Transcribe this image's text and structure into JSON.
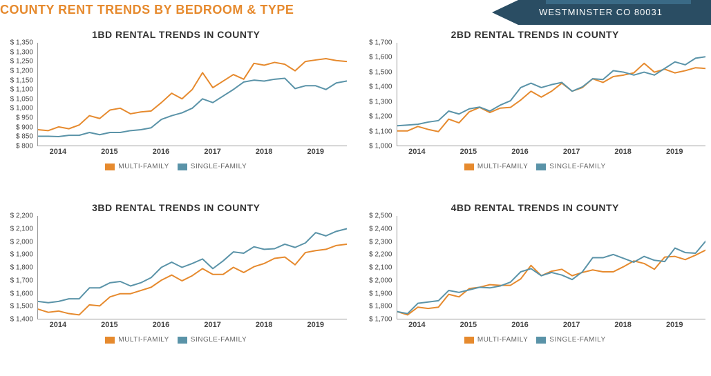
{
  "header": {
    "title": "COUNTY RENT TRENDS BY BEDROOM & TYPE",
    "location": "WESTMINSTER CO 80031"
  },
  "colors": {
    "title": "#e68a2e",
    "chip_bg": "#2a4d63",
    "axis": "#999999",
    "tick_text": "#444444",
    "series_multi": "#e68a2e",
    "series_single": "#5a93a8"
  },
  "x_axis": {
    "range": [
      2013.6,
      2019.6
    ],
    "ticks": [
      2014,
      2015,
      2016,
      2017,
      2018,
      2019
    ]
  },
  "legend": {
    "multi": "MULTI-FAMILY",
    "single": "SINGLE-FAMILY"
  },
  "style": {
    "line_width": 2,
    "chart_title_fontsize": 14,
    "y_tick_fontsize": 10,
    "x_tick_fontsize": 11,
    "legend_fontsize": 10
  },
  "charts": [
    {
      "id": "1bd",
      "title": "1BD RENTAL TRENDS IN COUNTY",
      "ylim": [
        800,
        1350
      ],
      "ystep": 50,
      "y_prefix": "$ ",
      "series": {
        "multi": [
          885,
          880,
          900,
          890,
          910,
          960,
          945,
          990,
          1000,
          970,
          980,
          985,
          1030,
          1080,
          1050,
          1100,
          1190,
          1110,
          1145,
          1180,
          1155,
          1240,
          1230,
          1245,
          1235,
          1200,
          1250,
          1258,
          1265,
          1255,
          1250
        ],
        "single": [
          850,
          850,
          848,
          855,
          855,
          870,
          858,
          870,
          870,
          880,
          885,
          895,
          940,
          960,
          975,
          1000,
          1050,
          1030,
          1065,
          1100,
          1140,
          1150,
          1145,
          1155,
          1160,
          1105,
          1120,
          1120,
          1100,
          1135,
          1145
        ]
      }
    },
    {
      "id": "2bd",
      "title": "2BD RENTAL TRENDS IN COUNTY",
      "ylim": [
        1000,
        1700
      ],
      "ystep": 100,
      "y_prefix": "$ ",
      "series": {
        "multi": [
          1100,
          1100,
          1130,
          1110,
          1095,
          1180,
          1155,
          1230,
          1260,
          1225,
          1255,
          1260,
          1310,
          1370,
          1330,
          1370,
          1425,
          1370,
          1395,
          1455,
          1430,
          1470,
          1480,
          1495,
          1560,
          1500,
          1520,
          1495,
          1510,
          1530,
          1525
        ],
        "single": [
          1135,
          1140,
          1145,
          1160,
          1170,
          1235,
          1215,
          1250,
          1262,
          1235,
          1275,
          1305,
          1395,
          1425,
          1395,
          1415,
          1430,
          1370,
          1400,
          1455,
          1450,
          1510,
          1500,
          1480,
          1500,
          1480,
          1525,
          1570,
          1550,
          1595,
          1605
        ]
      }
    },
    {
      "id": "3bd",
      "title": "3BD RENTAL TRENDS IN COUNTY",
      "ylim": [
        1400,
        2200
      ],
      "ystep": 100,
      "y_prefix": "$ ",
      "series": {
        "multi": [
          1475,
          1450,
          1460,
          1440,
          1430,
          1508,
          1500,
          1570,
          1595,
          1595,
          1620,
          1645,
          1700,
          1740,
          1695,
          1735,
          1790,
          1745,
          1745,
          1800,
          1760,
          1805,
          1830,
          1870,
          1880,
          1820,
          1915,
          1930,
          1940,
          1970,
          1980
        ],
        "single": [
          1535,
          1525,
          1535,
          1555,
          1555,
          1640,
          1640,
          1680,
          1690,
          1655,
          1680,
          1720,
          1800,
          1840,
          1800,
          1830,
          1865,
          1790,
          1850,
          1920,
          1910,
          1960,
          1940,
          1945,
          1980,
          1955,
          1990,
          2070,
          2045,
          2080,
          2100
        ]
      }
    },
    {
      "id": "4bd",
      "title": "4BD RENTAL TRENDS IN COUNTY",
      "ylim": [
        1700,
        2500
      ],
      "ystep": 100,
      "y_prefix": "$ ",
      "series": {
        "multi": [
          1755,
          1730,
          1790,
          1780,
          1790,
          1890,
          1870,
          1935,
          1945,
          1965,
          1960,
          1960,
          2010,
          2115,
          2035,
          2070,
          2085,
          2035,
          2060,
          2080,
          2065,
          2065,
          2105,
          2150,
          2130,
          2085,
          2180,
          2185,
          2160,
          2195,
          2235
        ],
        "single": [
          1755,
          1740,
          1820,
          1830,
          1840,
          1920,
          1905,
          1925,
          1945,
          1940,
          1955,
          1985,
          2065,
          2090,
          2035,
          2060,
          2040,
          2005,
          2065,
          2175,
          2175,
          2200,
          2170,
          2140,
          2185,
          2155,
          2145,
          2250,
          2215,
          2210,
          2305
        ]
      }
    }
  ]
}
